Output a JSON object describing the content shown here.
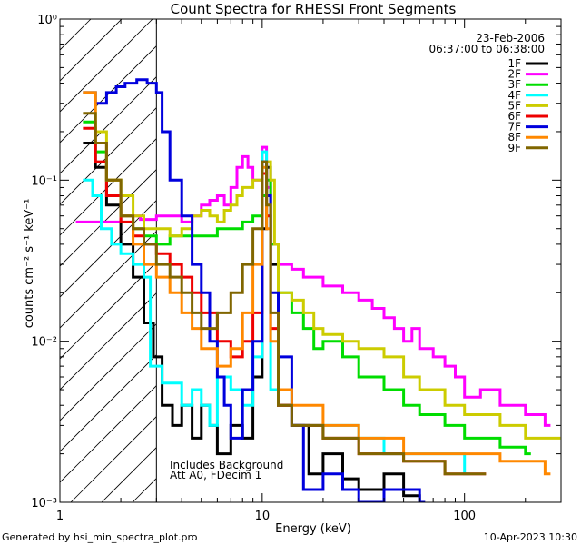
{
  "chart_data": {
    "type": "line",
    "title": "Count Spectra for RHESSI Front Segments",
    "xlabel": "Energy (keV)",
    "ylabel": "counts cm⁻² s⁻¹ keV⁻¹",
    "xscale": "log",
    "yscale": "log",
    "xlim": [
      1,
      300
    ],
    "ylim": [
      0.001,
      1
    ],
    "xticks": [
      {
        "value": 1,
        "label": "1"
      },
      {
        "value": 10,
        "label": "10"
      },
      {
        "value": 100,
        "label": "100"
      }
    ],
    "yticks": [
      {
        "value": 1,
        "label": "10⁰"
      },
      {
        "value": 0.1,
        "label": "10⁻¹"
      },
      {
        "value": 0.01,
        "label": "10⁻²"
      },
      {
        "value": 0.001,
        "label": "10⁻³"
      }
    ],
    "excluded_below_keV": 3,
    "date": "23-Feb-2006",
    "time_range": "06:37:00 to 06:38:00",
    "annotations": [
      "Includes Background",
      "Att A0, FDecim 1"
    ],
    "series": [
      {
        "name": "1F",
        "color": "#000000",
        "points": [
          [
            1.3,
            0.17
          ],
          [
            1.5,
            0.12
          ],
          [
            1.7,
            0.07
          ],
          [
            2.0,
            0.04
          ],
          [
            2.3,
            0.025
          ],
          [
            2.6,
            0.013
          ],
          [
            2.9,
            0.008
          ],
          [
            3.2,
            0.004
          ],
          [
            3.6,
            0.003
          ],
          [
            4.0,
            0.004
          ],
          [
            4.5,
            0.0025
          ],
          [
            5.0,
            0.004
          ],
          [
            5.5,
            0.003
          ],
          [
            6.0,
            0.002
          ],
          [
            7.0,
            0.003
          ],
          [
            8.0,
            0.0025
          ],
          [
            9.0,
            0.006
          ],
          [
            10.0,
            0.05
          ],
          [
            10.5,
            0.12
          ],
          [
            11.0,
            0.03
          ],
          [
            12.0,
            0.004
          ],
          [
            14.0,
            0.003
          ],
          [
            17.0,
            0.0015
          ],
          [
            20.0,
            0.002
          ],
          [
            25.0,
            0.0014
          ],
          [
            30.0,
            0.0012
          ],
          [
            40.0,
            0.0015
          ],
          [
            50.0,
            0.0011
          ],
          [
            60.0,
            0.001
          ]
        ]
      },
      {
        "name": "2F",
        "color": "#ff00ff",
        "points": [
          [
            1.2,
            0.055
          ],
          [
            1.5,
            0.055
          ],
          [
            2.0,
            0.06
          ],
          [
            2.5,
            0.057
          ],
          [
            3.0,
            0.06
          ],
          [
            3.5,
            0.06
          ],
          [
            4.0,
            0.055
          ],
          [
            4.5,
            0.06
          ],
          [
            5.0,
            0.07
          ],
          [
            5.5,
            0.075
          ],
          [
            6.0,
            0.08
          ],
          [
            6.5,
            0.07
          ],
          [
            7.0,
            0.09
          ],
          [
            7.5,
            0.12
          ],
          [
            8.0,
            0.14
          ],
          [
            8.5,
            0.12
          ],
          [
            9.0,
            0.1
          ],
          [
            10.0,
            0.16
          ],
          [
            10.5,
            0.09
          ],
          [
            11.0,
            0.04
          ],
          [
            12.0,
            0.03
          ],
          [
            14.0,
            0.028
          ],
          [
            16.0,
            0.025
          ],
          [
            18.0,
            0.025
          ],
          [
            20.0,
            0.022
          ],
          [
            25.0,
            0.02
          ],
          [
            30.0,
            0.018
          ],
          [
            35.0,
            0.016
          ],
          [
            40.0,
            0.014
          ],
          [
            45.0,
            0.012
          ],
          [
            50.0,
            0.01
          ],
          [
            55.0,
            0.012
          ],
          [
            60.0,
            0.009
          ],
          [
            70.0,
            0.008
          ],
          [
            80.0,
            0.007
          ],
          [
            90.0,
            0.006
          ],
          [
            100.0,
            0.0045
          ],
          [
            120.0,
            0.005
          ],
          [
            150.0,
            0.004
          ],
          [
            200.0,
            0.0035
          ],
          [
            250.0,
            0.003
          ]
        ]
      },
      {
        "name": "3F",
        "color": "#00dd00",
        "points": [
          [
            1.3,
            0.23
          ],
          [
            1.5,
            0.15
          ],
          [
            1.7,
            0.1
          ],
          [
            2.0,
            0.06
          ],
          [
            2.3,
            0.05
          ],
          [
            2.6,
            0.045
          ],
          [
            3.0,
            0.04
          ],
          [
            3.5,
            0.045
          ],
          [
            4.0,
            0.045
          ],
          [
            5.0,
            0.045
          ],
          [
            6.0,
            0.05
          ],
          [
            7.0,
            0.05
          ],
          [
            8.0,
            0.055
          ],
          [
            9.0,
            0.06
          ],
          [
            10.0,
            0.08
          ],
          [
            10.5,
            0.1
          ],
          [
            11.0,
            0.04
          ],
          [
            12.0,
            0.02
          ],
          [
            14.0,
            0.015
          ],
          [
            16.0,
            0.012
          ],
          [
            18.0,
            0.009
          ],
          [
            20.0,
            0.01
          ],
          [
            25.0,
            0.008
          ],
          [
            30.0,
            0.006
          ],
          [
            40.0,
            0.005
          ],
          [
            50.0,
            0.004
          ],
          [
            60.0,
            0.0035
          ],
          [
            80.0,
            0.003
          ],
          [
            100.0,
            0.0025
          ],
          [
            150.0,
            0.0022
          ],
          [
            200.0,
            0.002
          ]
        ]
      },
      {
        "name": "4F",
        "color": "#00ffff",
        "points": [
          [
            1.3,
            0.1
          ],
          [
            1.45,
            0.08
          ],
          [
            1.6,
            0.05
          ],
          [
            1.8,
            0.04
          ],
          [
            2.0,
            0.035
          ],
          [
            2.3,
            0.03
          ],
          [
            2.6,
            0.025
          ],
          [
            2.8,
            0.007
          ],
          [
            3.2,
            0.0055
          ],
          [
            3.6,
            0.0055
          ],
          [
            4.0,
            0.004
          ],
          [
            4.5,
            0.005
          ],
          [
            5.0,
            0.004
          ],
          [
            5.5,
            0.003
          ],
          [
            6.0,
            0.006
          ],
          [
            7.0,
            0.005
          ],
          [
            8.0,
            0.004
          ],
          [
            9.0,
            0.008
          ],
          [
            10.0,
            0.15
          ],
          [
            10.5,
            0.06
          ],
          [
            11.0,
            0.005
          ],
          [
            14.0,
            0.003
          ],
          [
            20.0,
            0.003
          ],
          [
            30.0,
            0.0025
          ],
          [
            40.0,
            0.002
          ],
          [
            60.0,
            0.002
          ],
          [
            100.0,
            0.0015
          ]
        ]
      },
      {
        "name": "5F",
        "color": "#cccc00",
        "points": [
          [
            1.3,
            0.35
          ],
          [
            1.5,
            0.2
          ],
          [
            1.7,
            0.1
          ],
          [
            2.0,
            0.08
          ],
          [
            2.3,
            0.06
          ],
          [
            2.6,
            0.05
          ],
          [
            3.0,
            0.05
          ],
          [
            3.5,
            0.045
          ],
          [
            4.0,
            0.05
          ],
          [
            4.5,
            0.06
          ],
          [
            5.0,
            0.065
          ],
          [
            5.5,
            0.06
          ],
          [
            6.0,
            0.055
          ],
          [
            6.5,
            0.065
          ],
          [
            7.0,
            0.07
          ],
          [
            7.5,
            0.08
          ],
          [
            8.0,
            0.09
          ],
          [
            9.0,
            0.1
          ],
          [
            10.0,
            0.13
          ],
          [
            11.0,
            0.1
          ],
          [
            11.5,
            0.04
          ],
          [
            12.0,
            0.02
          ],
          [
            14.0,
            0.018
          ],
          [
            16.0,
            0.015
          ],
          [
            18.0,
            0.012
          ],
          [
            20.0,
            0.011
          ],
          [
            25.0,
            0.01
          ],
          [
            30.0,
            0.009
          ],
          [
            40.0,
            0.008
          ],
          [
            50.0,
            0.006
          ],
          [
            60.0,
            0.005
          ],
          [
            80.0,
            0.004
          ],
          [
            100.0,
            0.0035
          ],
          [
            150.0,
            0.003
          ],
          [
            200.0,
            0.0025
          ],
          [
            280.0,
            0.0025
          ]
        ]
      },
      {
        "name": "6F",
        "color": "#ee0000",
        "points": [
          [
            1.3,
            0.21
          ],
          [
            1.5,
            0.13
          ],
          [
            1.7,
            0.08
          ],
          [
            2.0,
            0.055
          ],
          [
            2.3,
            0.045
          ],
          [
            2.6,
            0.04
          ],
          [
            3.0,
            0.035
          ],
          [
            3.5,
            0.03
          ],
          [
            4.0,
            0.025
          ],
          [
            4.5,
            0.02
          ],
          [
            5.0,
            0.015
          ],
          [
            6.0,
            0.01
          ],
          [
            7.0,
            0.008
          ],
          [
            8.0,
            0.01
          ],
          [
            9.0,
            0.015
          ],
          [
            10.0,
            0.11
          ],
          [
            10.5,
            0.06
          ],
          [
            11.0,
            0.012
          ],
          [
            12.0,
            0.004
          ],
          [
            14.0,
            0.003
          ],
          [
            20.0,
            0.0025
          ],
          [
            30.0,
            0.002
          ],
          [
            50.0,
            0.0018
          ],
          [
            80.0,
            0.0015
          ],
          [
            120.0,
            0.0015
          ]
        ]
      },
      {
        "name": "7F",
        "color": "#0000dd",
        "points": [
          [
            1.3,
            0.35
          ],
          [
            1.5,
            0.3
          ],
          [
            1.7,
            0.35
          ],
          [
            1.9,
            0.38
          ],
          [
            2.1,
            0.4
          ],
          [
            2.4,
            0.42
          ],
          [
            2.7,
            0.4
          ],
          [
            3.0,
            0.35
          ],
          [
            3.2,
            0.2
          ],
          [
            3.5,
            0.1
          ],
          [
            4.0,
            0.06
          ],
          [
            4.5,
            0.03
          ],
          [
            5.0,
            0.02
          ],
          [
            5.5,
            0.01
          ],
          [
            6.0,
            0.006
          ],
          [
            6.5,
            0.004
          ],
          [
            7.0,
            0.0025
          ],
          [
            8.0,
            0.005
          ],
          [
            9.0,
            0.01
          ],
          [
            10.0,
            0.13
          ],
          [
            10.5,
            0.08
          ],
          [
            11.0,
            0.02
          ],
          [
            12.0,
            0.008
          ],
          [
            14.0,
            0.003
          ],
          [
            16.0,
            0.0012
          ],
          [
            20.0,
            0.0015
          ],
          [
            25.0,
            0.0012
          ],
          [
            30.0,
            0.001
          ],
          [
            40.0,
            0.0012
          ],
          [
            60.0,
            0.001
          ]
        ]
      },
      {
        "name": "8F",
        "color": "#ff8800",
        "points": [
          [
            1.3,
            0.35
          ],
          [
            1.5,
            0.17
          ],
          [
            1.7,
            0.1
          ],
          [
            2.0,
            0.06
          ],
          [
            2.3,
            0.04
          ],
          [
            2.6,
            0.03
          ],
          [
            3.0,
            0.025
          ],
          [
            3.5,
            0.02
          ],
          [
            4.0,
            0.015
          ],
          [
            4.5,
            0.012
          ],
          [
            5.0,
            0.009
          ],
          [
            6.0,
            0.007
          ],
          [
            7.0,
            0.009
          ],
          [
            8.0,
            0.015
          ],
          [
            9.0,
            0.03
          ],
          [
            10.0,
            0.12
          ],
          [
            10.5,
            0.05
          ],
          [
            11.0,
            0.01
          ],
          [
            12.0,
            0.005
          ],
          [
            14.0,
            0.004
          ],
          [
            20.0,
            0.003
          ],
          [
            30.0,
            0.0025
          ],
          [
            50.0,
            0.002
          ],
          [
            80.0,
            0.002
          ],
          [
            150.0,
            0.0018
          ],
          [
            250.0,
            0.0015
          ]
        ]
      },
      {
        "name": "9F",
        "color": "#806600",
        "points": [
          [
            1.3,
            0.26
          ],
          [
            1.5,
            0.17
          ],
          [
            1.7,
            0.1
          ],
          [
            2.0,
            0.06
          ],
          [
            2.3,
            0.05
          ],
          [
            2.6,
            0.04
          ],
          [
            3.0,
            0.03
          ],
          [
            3.5,
            0.025
          ],
          [
            4.0,
            0.02
          ],
          [
            4.5,
            0.015
          ],
          [
            5.0,
            0.012
          ],
          [
            6.0,
            0.015
          ],
          [
            7.0,
            0.02
          ],
          [
            8.0,
            0.03
          ],
          [
            9.0,
            0.05
          ],
          [
            10.0,
            0.13
          ],
          [
            10.5,
            0.07
          ],
          [
            11.0,
            0.015
          ],
          [
            12.0,
            0.004
          ],
          [
            14.0,
            0.003
          ],
          [
            20.0,
            0.0025
          ],
          [
            30.0,
            0.002
          ],
          [
            50.0,
            0.0018
          ],
          [
            80.0,
            0.0015
          ],
          [
            120.0,
            0.0015
          ]
        ]
      }
    ]
  },
  "footer": {
    "generated_by": "Generated by hsi_min_spectra_plot.pro",
    "timestamp": "10-Apr-2023 10:30"
  }
}
